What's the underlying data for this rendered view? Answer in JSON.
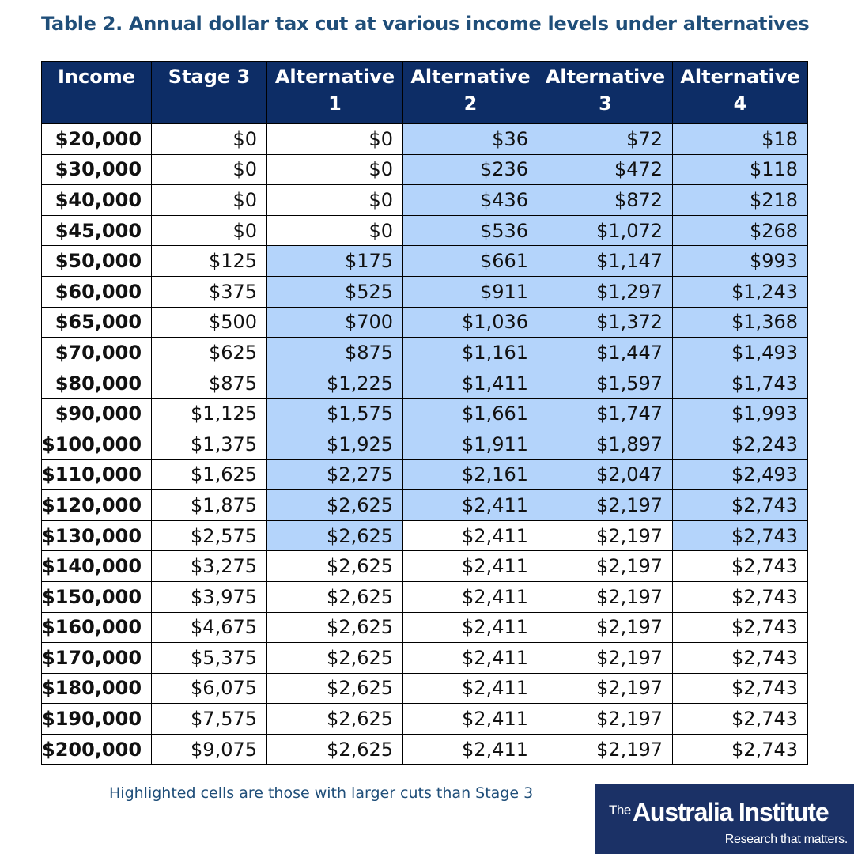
{
  "title": "Table 2. Annual dollar tax cut at various income levels under alternatives",
  "table": {
    "headers": [
      "Income",
      "Stage 3",
      "Alternative 1",
      "Alternative 2",
      "Alternative 3",
      "Alternative 4"
    ],
    "highlight_color": "#b4d4fb",
    "header_color": "#0d2d66",
    "rows": [
      {
        "cells": [
          "$20,000",
          "$0",
          "$0",
          "$36",
          "$72",
          "$18"
        ],
        "highlighted": [
          false,
          false,
          false,
          true,
          true,
          true
        ]
      },
      {
        "cells": [
          "$30,000",
          "$0",
          "$0",
          "$236",
          "$472",
          "$118"
        ],
        "highlighted": [
          false,
          false,
          false,
          true,
          true,
          true
        ]
      },
      {
        "cells": [
          "$40,000",
          "$0",
          "$0",
          "$436",
          "$872",
          "$218"
        ],
        "highlighted": [
          false,
          false,
          false,
          true,
          true,
          true
        ]
      },
      {
        "cells": [
          "$45,000",
          "$0",
          "$0",
          "$536",
          "$1,072",
          "$268"
        ],
        "highlighted": [
          false,
          false,
          false,
          true,
          true,
          true
        ]
      },
      {
        "cells": [
          "$50,000",
          "$125",
          "$175",
          "$661",
          "$1,147",
          "$993"
        ],
        "highlighted": [
          false,
          false,
          true,
          true,
          true,
          true
        ]
      },
      {
        "cells": [
          "$60,000",
          "$375",
          "$525",
          "$911",
          "$1,297",
          "$1,243"
        ],
        "highlighted": [
          false,
          false,
          true,
          true,
          true,
          true
        ]
      },
      {
        "cells": [
          "$65,000",
          "$500",
          "$700",
          "$1,036",
          "$1,372",
          "$1,368"
        ],
        "highlighted": [
          false,
          false,
          true,
          true,
          true,
          true
        ]
      },
      {
        "cells": [
          "$70,000",
          "$625",
          "$875",
          "$1,161",
          "$1,447",
          "$1,493"
        ],
        "highlighted": [
          false,
          false,
          true,
          true,
          true,
          true
        ]
      },
      {
        "cells": [
          "$80,000",
          "$875",
          "$1,225",
          "$1,411",
          "$1,597",
          "$1,743"
        ],
        "highlighted": [
          false,
          false,
          true,
          true,
          true,
          true
        ]
      },
      {
        "cells": [
          "$90,000",
          "$1,125",
          "$1,575",
          "$1,661",
          "$1,747",
          "$1,993"
        ],
        "highlighted": [
          false,
          false,
          true,
          true,
          true,
          true
        ]
      },
      {
        "cells": [
          "$100,000",
          "$1,375",
          "$1,925",
          "$1,911",
          "$1,897",
          "$2,243"
        ],
        "highlighted": [
          false,
          false,
          true,
          true,
          true,
          true
        ]
      },
      {
        "cells": [
          "$110,000",
          "$1,625",
          "$2,275",
          "$2,161",
          "$2,047",
          "$2,493"
        ],
        "highlighted": [
          false,
          false,
          true,
          true,
          true,
          true
        ]
      },
      {
        "cells": [
          "$120,000",
          "$1,875",
          "$2,625",
          "$2,411",
          "$2,197",
          "$2,743"
        ],
        "highlighted": [
          false,
          false,
          true,
          true,
          true,
          true
        ]
      },
      {
        "cells": [
          "$130,000",
          "$2,575",
          "$2,625",
          "$2,411",
          "$2,197",
          "$2,743"
        ],
        "highlighted": [
          false,
          false,
          true,
          false,
          false,
          true
        ]
      },
      {
        "cells": [
          "$140,000",
          "$3,275",
          "$2,625",
          "$2,411",
          "$2,197",
          "$2,743"
        ],
        "highlighted": [
          false,
          false,
          false,
          false,
          false,
          false
        ]
      },
      {
        "cells": [
          "$150,000",
          "$3,975",
          "$2,625",
          "$2,411",
          "$2,197",
          "$2,743"
        ],
        "highlighted": [
          false,
          false,
          false,
          false,
          false,
          false
        ]
      },
      {
        "cells": [
          "$160,000",
          "$4,675",
          "$2,625",
          "$2,411",
          "$2,197",
          "$2,743"
        ],
        "highlighted": [
          false,
          false,
          false,
          false,
          false,
          false
        ]
      },
      {
        "cells": [
          "$170,000",
          "$5,375",
          "$2,625",
          "$2,411",
          "$2,197",
          "$2,743"
        ],
        "highlighted": [
          false,
          false,
          false,
          false,
          false,
          false
        ]
      },
      {
        "cells": [
          "$180,000",
          "$6,075",
          "$2,625",
          "$2,411",
          "$2,197",
          "$2,743"
        ],
        "highlighted": [
          false,
          false,
          false,
          false,
          false,
          false
        ]
      },
      {
        "cells": [
          "$190,000",
          "$7,575",
          "$2,625",
          "$2,411",
          "$2,197",
          "$2,743"
        ],
        "highlighted": [
          false,
          false,
          false,
          false,
          false,
          false
        ]
      },
      {
        "cells": [
          "$200,000",
          "$9,075",
          "$2,625",
          "$2,411",
          "$2,197",
          "$2,743"
        ],
        "highlighted": [
          false,
          false,
          false,
          false,
          false,
          false
        ]
      }
    ]
  },
  "note": "Highlighted cells are those with larger cuts than Stage 3",
  "logo": {
    "the": "The",
    "name": "Australia Institute",
    "tagline": "Research that matters.",
    "color": "#1b3166"
  }
}
